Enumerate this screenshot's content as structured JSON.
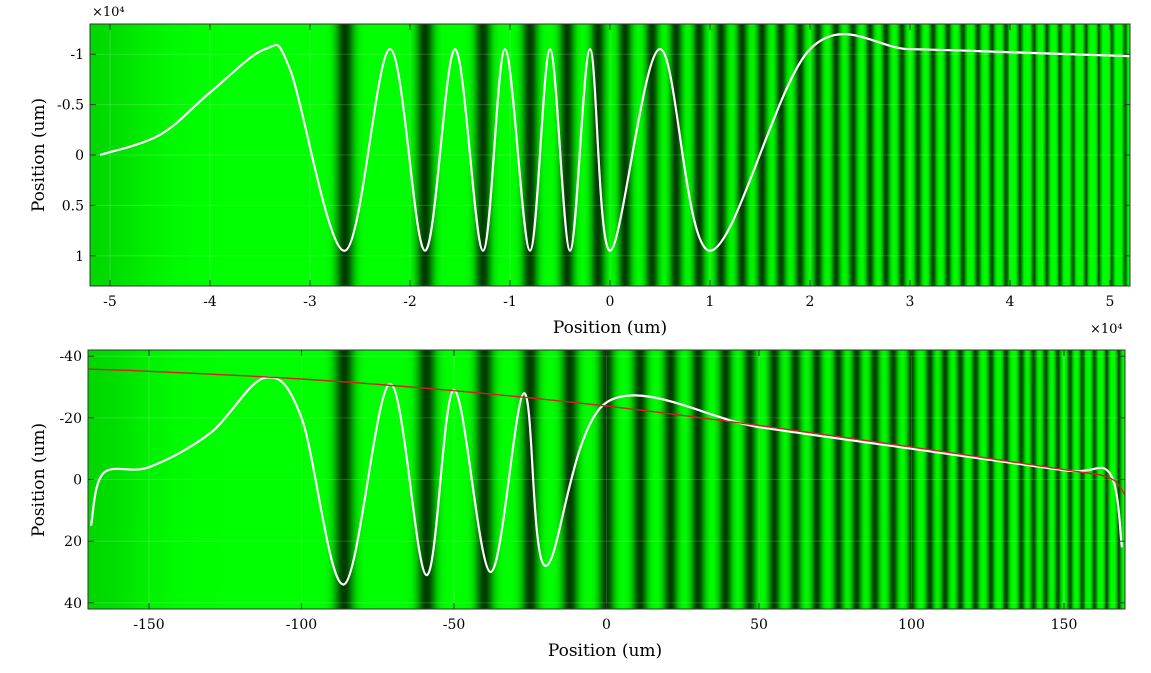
{
  "colors": {
    "field": "#00ff00",
    "field_dark": "#000000",
    "wave": "#ffffff",
    "envelope": "#d42020"
  },
  "chart_data": [
    {
      "type": "line",
      "background": "green intensity map with vertical dark fringes (chirped)",
      "xlabel": "Position (um)",
      "ylabel": "Position (um)",
      "xlim": [
        -5.2,
        5.2
      ],
      "ylim": [
        -1.3,
        1.3
      ],
      "y_reversed": true,
      "x_ticks": [
        -5,
        -4,
        -3,
        -2,
        -1,
        0,
        1,
        2,
        3,
        4,
        5
      ],
      "y_ticks": [
        -1,
        -0.5,
        0,
        0.5,
        1
      ],
      "x_tick_labels": [
        "-5",
        "-4",
        "-3",
        "-2",
        "-1",
        "0",
        "1",
        "2",
        "3",
        "4",
        "5"
      ],
      "y_tick_labels": [
        "-1",
        "-0.5",
        "0",
        "0.5",
        "1"
      ],
      "y_exponent_label": "×10⁴",
      "x_exponent_label": "×10⁴",
      "grid": true,
      "series": [
        {
          "color": "#ffffff",
          "description": "chirped oscillation, amplitude ~1.05, first peak at x ~ -3.45",
          "x": [
            -5.1,
            -4.5,
            -4.0,
            -3.45,
            -3.2,
            -2.65,
            -2.2,
            -1.85,
            -1.55,
            -1.27,
            -1.05,
            -0.8,
            -0.6,
            -0.4,
            -0.2,
            0.0,
            0.5,
            1.0,
            2.0,
            3.0,
            4.0,
            5.2
          ],
          "y": [
            0.0,
            -0.2,
            -0.62,
            -1.05,
            -0.85,
            0.95,
            -1.05,
            0.95,
            -1.05,
            0.95,
            -1.05,
            0.95,
            -1.05,
            0.95,
            -1.05,
            0.95,
            -1.05,
            0.95,
            -1.05,
            -1.05,
            -1.02,
            -0.98
          ]
        }
      ]
    },
    {
      "type": "line",
      "background": "green intensity map with vertical dark fringes (chirped)",
      "xlabel": "Position (um)",
      "ylabel": "Position (um)",
      "xlim": [
        -170,
        170
      ],
      "ylim": [
        -42,
        42
      ],
      "y_reversed": true,
      "x_ticks": [
        -150,
        -100,
        -50,
        0,
        50,
        100,
        150
      ],
      "y_ticks": [
        -40,
        -20,
        0,
        20,
        40
      ],
      "x_tick_labels": [
        "-150",
        "-100",
        "-50",
        "0",
        "50",
        "100",
        "150"
      ],
      "y_tick_labels": [
        "-40",
        "-20",
        "0",
        "20",
        "40"
      ],
      "grid": true,
      "series": [
        {
          "color": "#ffffff",
          "description": "chirped oscillation with decaying amplitude",
          "x": [
            -169,
            -165,
            -150,
            -130,
            -112,
            -100,
            -86,
            -71,
            -59,
            -50,
            -38,
            -27,
            -20,
            0,
            50,
            100,
            150,
            165,
            169
          ],
          "y": [
            15,
            -2,
            -4,
            -15,
            -33,
            -20,
            34,
            -31,
            31,
            -29,
            30,
            -28,
            28,
            -25,
            -17,
            -10,
            -3,
            -2,
            22
          ]
        },
        {
          "color": "#d42020",
          "description": "upper envelope",
          "x": [
            -170,
            -150,
            -100,
            -50,
            0,
            50,
            100,
            150,
            165,
            170
          ],
          "y": [
            -35.8,
            -35.1,
            -32.6,
            -28.8,
            -23.8,
            -17.5,
            -10.5,
            -3.2,
            -0.5,
            5
          ]
        }
      ]
    }
  ]
}
